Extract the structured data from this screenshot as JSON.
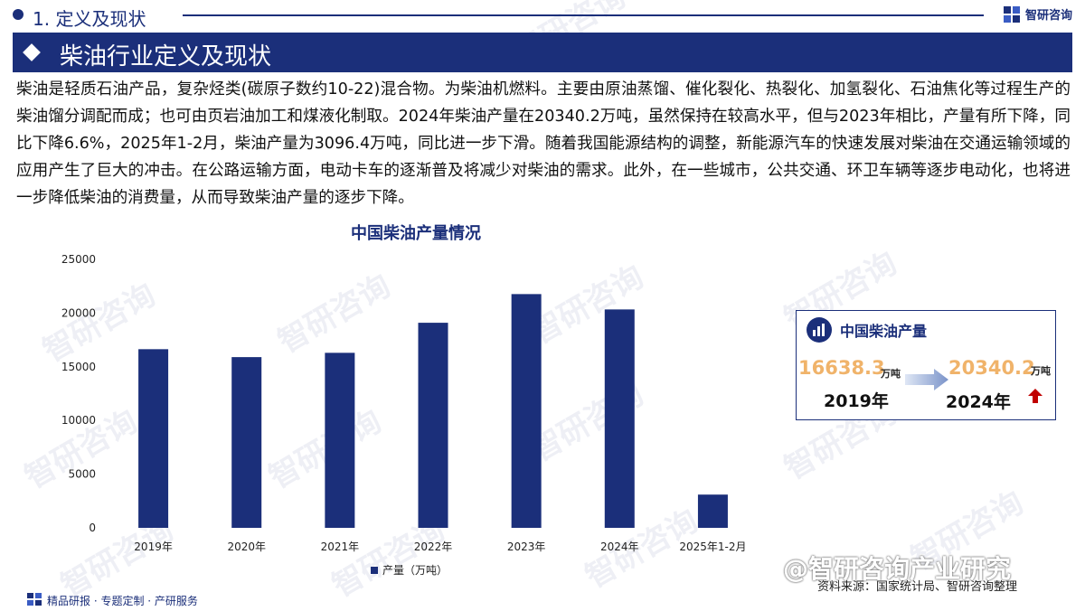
{
  "header": {
    "section_title": "1. 定义及现状",
    "brand_name": "智研咨询"
  },
  "title_bar": {
    "title": "柴油行业定义及现状"
  },
  "intro": {
    "text": "柴油是轻质石油产品，复杂烃类(碳原子数约10-22)混合物。为柴油机燃料。主要由原油蒸馏、催化裂化、热裂化、加氢裂化、石油焦化等过程生产的柴油馏分调配而成；也可由页岩油加工和煤液化制取。2024年柴油产量在20340.2万吨，虽然保持在较高水平，但与2023年相比，产量有所下降，同比下降6.6%，2025年1-2月，柴油产量为3096.4万吨，同比进一步下滑。随着我国能源结构的调整，新能源汽车的快速发展对柴油在交通运输领域的应用产生了巨大的冲击。在公路运输方面，电动卡车的逐渐普及将减少对柴油的需求。此外，在一些城市，公共交通、环卫车辆等逐步电动化，也将进一步降低柴油的消费量，从而导致柴油产量的逐步下降。"
  },
  "chart_data": {
    "type": "bar",
    "title": "中国柴油产量情况",
    "categories": [
      "2019年",
      "2020年",
      "2021年",
      "2022年",
      "2023年",
      "2024年",
      "2025年1-2月"
    ],
    "series": [
      {
        "name": "产量（万吨）",
        "values": [
          16638.3,
          15900,
          16300,
          19100,
          21770,
          20340.2,
          3096.4
        ]
      }
    ],
    "ylim": [
      0,
      25000
    ],
    "yticks": [
      0,
      5000,
      10000,
      15000,
      20000,
      25000
    ],
    "grid": false,
    "legend_position": "bottom-center",
    "bar_color": "#1b2f7a"
  },
  "stat_box": {
    "title": "中国柴油产量",
    "value_2019": "16638.3",
    "unit_2019": "万吨",
    "year_2019": "2019年",
    "value_2024": "20340.2",
    "unit_2024": "万吨",
    "year_2024": "2024年",
    "icon": "chart-icon",
    "trend_icon": "up-arrow-icon"
  },
  "footer": {
    "left_text": "精品研报 · 专题定制 · 产研服务",
    "source_text": "资料来源：国家统计局、智研咨询整理",
    "overlay_watermark": "@智研咨询产业研究"
  },
  "watermark_text": "智研咨询",
  "colors": {
    "primary": "#1b2f7a",
    "accent_orange": "#f0b36a",
    "up_red": "#c00000"
  }
}
